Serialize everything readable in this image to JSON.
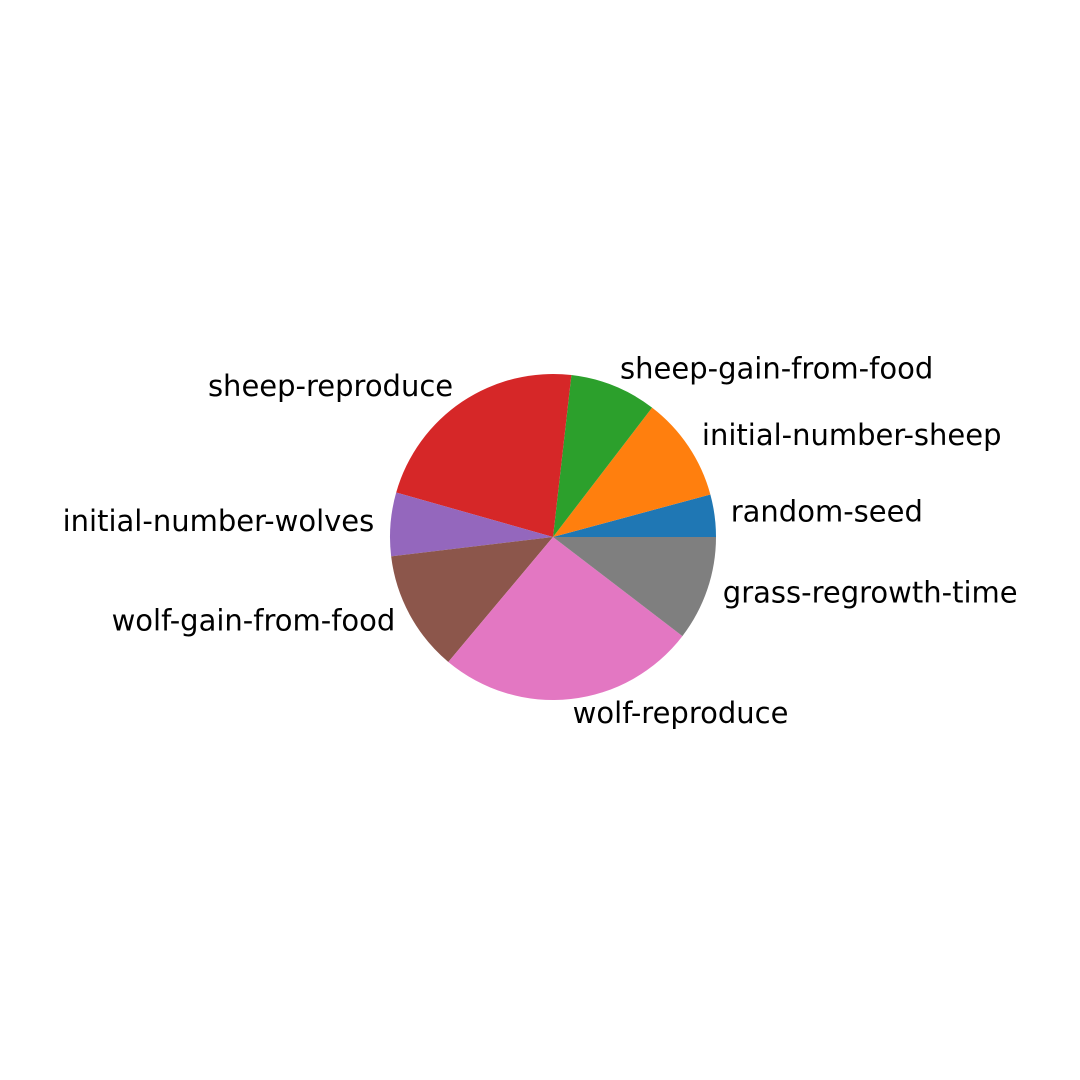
{
  "chart_data": {
    "type": "pie",
    "title": "",
    "start_angle_deg": 0,
    "direction": "counterclockwise",
    "legend": "none",
    "slices": [
      {
        "label": "random-seed",
        "value": 4.2,
        "color": "#1f77b4"
      },
      {
        "label": "initial-number-sheep",
        "value": 10.4,
        "color": "#ff7f0e"
      },
      {
        "label": "sheep-gain-from-food",
        "value": 8.6,
        "color": "#2ca02c"
      },
      {
        "label": "sheep-reproduce",
        "value": 22.4,
        "color": "#d62728"
      },
      {
        "label": "initial-number-wolves",
        "value": 6.3,
        "color": "#9467bd"
      },
      {
        "label": "wolf-gain-from-food",
        "value": 12.0,
        "color": "#8c564b"
      },
      {
        "label": "wolf-reproduce",
        "value": 25.7,
        "color": "#e377c2"
      },
      {
        "label": "grass-regrowth-time",
        "value": 10.4,
        "color": "#7f7f7f"
      }
    ]
  }
}
